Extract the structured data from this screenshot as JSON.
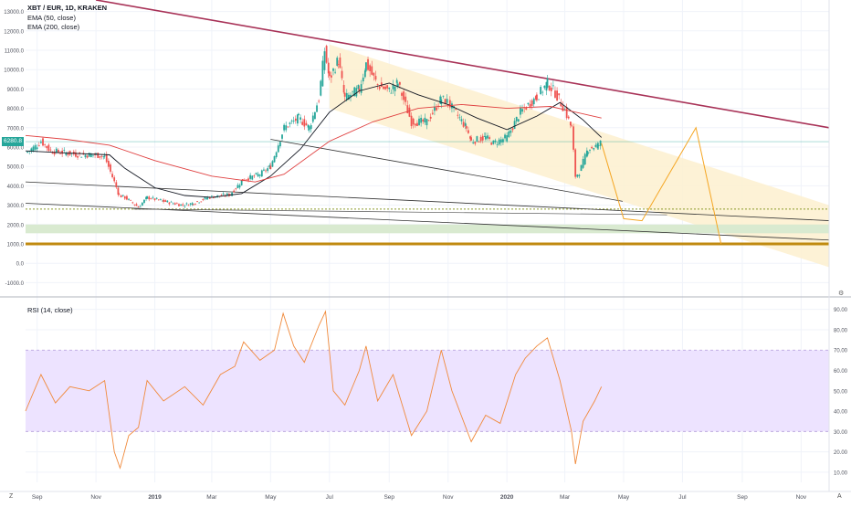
{
  "header": {
    "title": "XBT / EUR, 1D, KRAKEN",
    "ema50_label": "EMA (50, close)",
    "ema200_label": "EMA (200, close)",
    "last_price": "6280.8",
    "price_color": "#26a69a"
  },
  "rsi_panel": {
    "label": "RSI (14, close)"
  },
  "buttons": {
    "log_label": "Z",
    "auto_label": "A",
    "settings_icon": "gear-icon"
  },
  "colors": {
    "up_candle": "#26a69a",
    "down_candle": "#ef5350",
    "ema50": "#131722",
    "ema200": "#e04040",
    "upper_trendline": "#a83257",
    "channel_fill": "#fdf0cf",
    "projection": "#f5a623",
    "rsi_line": "#f08a3c",
    "rsi_band": "#ede3ff",
    "support_line": "#c08a10",
    "support_zone": "#d9ead0"
  },
  "chart_data": [
    {
      "type": "candlestick",
      "title": "XBT / EUR, 1D, KRAKEN",
      "series": [
        {
          "name": "XBT / EUR",
          "points": [
            [
              "2018-08-20",
              5700
            ],
            [
              "2018-09-01",
              6100
            ],
            [
              "2018-09-05",
              6300
            ],
            [
              "2018-09-15",
              5800
            ],
            [
              "2018-10-01",
              5700
            ],
            [
              "2018-10-15",
              5600
            ],
            [
              "2018-11-01",
              5600
            ],
            [
              "2018-11-10",
              5500
            ],
            [
              "2018-11-20",
              4200
            ],
            [
              "2018-11-25",
              3500
            ],
            [
              "2018-12-01",
              3400
            ],
            [
              "2018-12-15",
              2900
            ],
            [
              "2018-12-24",
              3400
            ],
            [
              "2019-01-10",
              3200
            ],
            [
              "2019-01-30",
              3000
            ],
            [
              "2019-02-10",
              3100
            ],
            [
              "2019-02-25",
              3400
            ],
            [
              "2019-03-20",
              3550
            ],
            [
              "2019-04-02",
              4300
            ],
            [
              "2019-04-20",
              4600
            ],
            [
              "2019-05-01",
              5000
            ],
            [
              "2019-05-15",
              7000
            ],
            [
              "2019-05-30",
              7500
            ],
            [
              "2019-06-10",
              7000
            ],
            [
              "2019-06-20",
              8500
            ],
            [
              "2019-06-26",
              11000
            ],
            [
              "2019-07-01",
              9500
            ],
            [
              "2019-07-10",
              10500
            ],
            [
              "2019-07-17",
              8500
            ],
            [
              "2019-08-01",
              9000
            ],
            [
              "2019-08-08",
              10300
            ],
            [
              "2019-08-20",
              9200
            ],
            [
              "2019-09-01",
              8900
            ],
            [
              "2019-09-10",
              9300
            ],
            [
              "2019-09-24",
              7300
            ],
            [
              "2019-10-10",
              7300
            ],
            [
              "2019-10-25",
              8500
            ],
            [
              "2019-11-01",
              8300
            ],
            [
              "2019-11-20",
              7000
            ],
            [
              "2019-11-25",
              6300
            ],
            [
              "2019-12-10",
              6500
            ],
            [
              "2019-12-18",
              6200
            ],
            [
              "2020-01-01",
              6500
            ],
            [
              "2020-01-15",
              7800
            ],
            [
              "2020-02-01",
              8600
            ],
            [
              "2020-02-12",
              9300
            ],
            [
              "2020-02-20",
              8800
            ],
            [
              "2020-03-01",
              7900
            ],
            [
              "2020-03-08",
              7000
            ],
            [
              "2020-03-12",
              4500
            ],
            [
              "2020-03-16",
              4700
            ],
            [
              "2020-03-25",
              5900
            ],
            [
              "2020-04-05",
              6100
            ],
            [
              "2020-04-08",
              6280.8
            ]
          ]
        },
        {
          "name": "EMA (50, close)",
          "points": [
            [
              "2018-08-20",
              5800
            ],
            [
              "2018-10-01",
              5700
            ],
            [
              "2018-11-15",
              5600
            ],
            [
              "2018-12-01",
              4900
            ],
            [
              "2019-01-01",
              3900
            ],
            [
              "2019-02-01",
              3500
            ],
            [
              "2019-03-01",
              3400
            ],
            [
              "2019-04-01",
              3600
            ],
            [
              "2019-05-01",
              4500
            ],
            [
              "2019-06-01",
              5900
            ],
            [
              "2019-07-01",
              7800
            ],
            [
              "2019-08-01",
              8900
            ],
            [
              "2019-09-01",
              9300
            ],
            [
              "2019-10-01",
              8700
            ],
            [
              "2019-11-01",
              8200
            ],
            [
              "2019-12-01",
              7500
            ],
            [
              "2020-01-01",
              6900
            ],
            [
              "2020-02-01",
              7600
            ],
            [
              "2020-02-25",
              8300
            ],
            [
              "2020-03-20",
              7400
            ],
            [
              "2020-04-08",
              6500
            ]
          ]
        },
        {
          "name": "EMA (200, close)",
          "points": [
            [
              "2018-08-20",
              6600
            ],
            [
              "2018-10-01",
              6400
            ],
            [
              "2018-11-15",
              6100
            ],
            [
              "2019-01-01",
              5300
            ],
            [
              "2019-03-01",
              4500
            ],
            [
              "2019-04-15",
              4200
            ],
            [
              "2019-05-15",
              4600
            ],
            [
              "2019-07-01",
              6300
            ],
            [
              "2019-08-15",
              7300
            ],
            [
              "2019-10-01",
              8000
            ],
            [
              "2019-11-15",
              8200
            ],
            [
              "2020-01-01",
              8000
            ],
            [
              "2020-02-15",
              8100
            ],
            [
              "2020-04-08",
              7500
            ]
          ]
        }
      ],
      "projection_points": [
        [
          "2020-04-08",
          6200
        ],
        [
          "2020-05-01",
          2300
        ],
        [
          "2020-05-20",
          2200
        ],
        [
          "2020-07-15",
          7000
        ],
        [
          "2020-08-10",
          1000
        ]
      ],
      "horizontal_levels": [
        2800,
        1800,
        1000
      ],
      "y_ticks": [
        -1000,
        0,
        1000,
        2000,
        3000,
        4000,
        5000,
        6000,
        7000,
        8000,
        9000,
        10000,
        11000,
        12000,
        13000
      ],
      "ylim": [
        -1500,
        13500
      ],
      "x_ticks": [
        "Sep",
        "Nov",
        "2019",
        "Mar",
        "May",
        "Jul",
        "Sep",
        "Nov",
        "2020",
        "Mar",
        "May",
        "Jul",
        "Sep",
        "Nov"
      ],
      "grid": true
    },
    {
      "type": "line",
      "title": "RSI (14, close)",
      "series": [
        {
          "name": "RSI (14, close)",
          "points": [
            [
              "2018-08-20",
              40
            ],
            [
              "2018-09-05",
              58
            ],
            [
              "2018-09-20",
              44
            ],
            [
              "2018-10-05",
              52
            ],
            [
              "2018-10-25",
              50
            ],
            [
              "2018-11-10",
              55
            ],
            [
              "2018-11-20",
              20
            ],
            [
              "2018-11-26",
              12
            ],
            [
              "2018-12-05",
              28
            ],
            [
              "2018-12-15",
              32
            ],
            [
              "2018-12-24",
              55
            ],
            [
              "2019-01-10",
              45
            ],
            [
              "2019-02-01",
              52
            ],
            [
              "2019-02-20",
              43
            ],
            [
              "2019-03-10",
              58
            ],
            [
              "2019-03-25",
              62
            ],
            [
              "2019-04-03",
              74
            ],
            [
              "2019-04-20",
              65
            ],
            [
              "2019-05-05",
              70
            ],
            [
              "2019-05-14",
              88
            ],
            [
              "2019-05-25",
              72
            ],
            [
              "2019-06-05",
              64
            ],
            [
              "2019-06-20",
              82
            ],
            [
              "2019-06-27",
              89
            ],
            [
              "2019-07-05",
              50
            ],
            [
              "2019-07-17",
              43
            ],
            [
              "2019-08-01",
              60
            ],
            [
              "2019-08-08",
              72
            ],
            [
              "2019-08-20",
              45
            ],
            [
              "2019-09-05",
              58
            ],
            [
              "2019-09-24",
              28
            ],
            [
              "2019-10-10",
              40
            ],
            [
              "2019-10-25",
              70
            ],
            [
              "2019-11-05",
              50
            ],
            [
              "2019-11-25",
              25
            ],
            [
              "2019-12-10",
              38
            ],
            [
              "2019-12-25",
              34
            ],
            [
              "2020-01-10",
              58
            ],
            [
              "2020-01-20",
              66
            ],
            [
              "2020-02-01",
              72
            ],
            [
              "2020-02-12",
              76
            ],
            [
              "2020-02-25",
              55
            ],
            [
              "2020-03-08",
              30
            ],
            [
              "2020-03-12",
              14
            ],
            [
              "2020-03-20",
              35
            ],
            [
              "2020-04-01",
              45
            ],
            [
              "2020-04-08",
              52
            ]
          ]
        }
      ],
      "bands": [
        30,
        70
      ],
      "y_ticks": [
        10,
        20,
        30,
        40,
        50,
        60,
        70,
        80,
        90
      ],
      "ylim": [
        5,
        93
      ],
      "grid": true
    }
  ]
}
